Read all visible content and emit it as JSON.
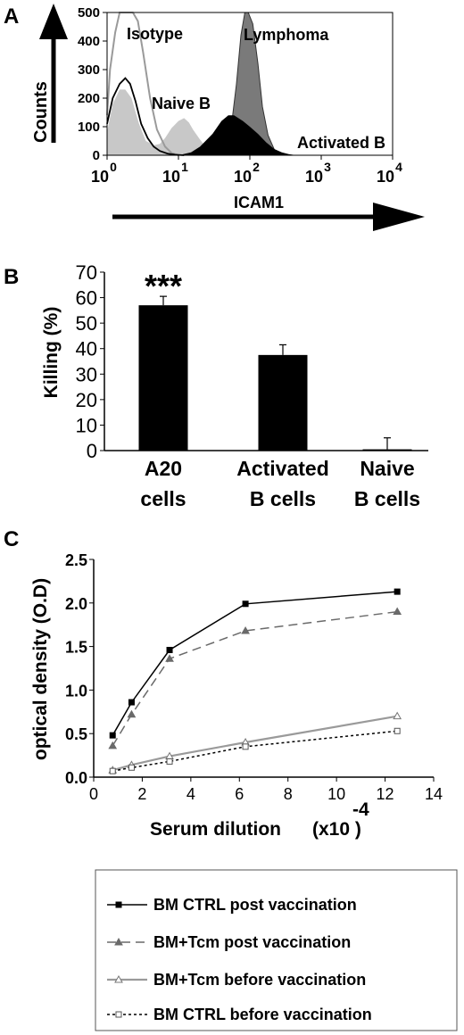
{
  "colors": {
    "isotope": "#9a9a9a",
    "naive_fill": "#c8c8c8",
    "lymphoma_fill": "#7a7a7a",
    "activated_fill": "#000000",
    "bar": "#000000",
    "series_gray": "#6a6a6a",
    "series_light": "#9a9a9a"
  },
  "panels": {
    "a": {
      "letter": "A"
    },
    "b": {
      "letter": "B"
    },
    "c": {
      "letter": "C"
    }
  },
  "chart_data": [
    {
      "type": "area",
      "panel": "A",
      "xlabel": "ICAM1",
      "ylabel": "Counts",
      "x_scale": "log",
      "xlim": [
        1,
        10000
      ],
      "ylim": [
        0,
        500
      ],
      "yticks": [
        "0",
        "100",
        "200",
        "300",
        "400",
        "500"
      ],
      "xticks": [
        {
          "base": "10",
          "exp": "0",
          "value": 1
        },
        {
          "base": "10",
          "exp": "1",
          "value": 10
        },
        {
          "base": "10",
          "exp": "2",
          "value": 100
        },
        {
          "base": "10",
          "exp": "3",
          "value": 1000
        },
        {
          "base": "10",
          "exp": "4",
          "value": 10000
        }
      ],
      "series": [
        {
          "name": "Isotype",
          "style": "gray-line",
          "x": [
            1,
            1.1,
            1.3,
            1.5,
            1.7,
            2,
            2.3,
            2.7,
            3.2,
            4,
            5,
            6.5,
            8,
            10
          ],
          "y": [
            140,
            300,
            430,
            500,
            500,
            500,
            500,
            470,
            360,
            200,
            90,
            30,
            8,
            0
          ]
        },
        {
          "name": "Naive B",
          "style": "light-fill",
          "x": [
            1,
            1.2,
            1.5,
            1.8,
            2.2,
            2.8,
            3.5,
            4.5,
            5.5,
            6.5,
            8,
            10,
            12,
            14,
            16,
            20,
            25,
            30,
            40
          ],
          "y": [
            80,
            180,
            230,
            230,
            200,
            110,
            50,
            35,
            40,
            60,
            95,
            120,
            130,
            115,
            90,
            55,
            25,
            10,
            0
          ]
        },
        {
          "name": "Activated B",
          "style": "black-fill",
          "x": [
            10,
            15,
            20,
            30,
            40,
            50,
            60,
            80,
            100,
            130,
            170,
            220,
            280,
            350,
            450
          ],
          "y": [
            0,
            10,
            30,
            75,
            120,
            140,
            140,
            120,
            100,
            75,
            45,
            22,
            10,
            4,
            0
          ]
        },
        {
          "name": "Lymphoma",
          "style": "dark-fill",
          "x": [
            30,
            45,
            55,
            65,
            75,
            85,
            95,
            110,
            130,
            150,
            180,
            220,
            260
          ],
          "y": [
            0,
            30,
            100,
            250,
            420,
            500,
            500,
            460,
            320,
            170,
            70,
            20,
            0
          ]
        },
        {
          "name": "",
          "style": "black-line",
          "x": [
            1,
            1.2,
            1.5,
            1.8,
            2.1,
            2.5,
            3,
            3.7,
            4.5,
            5.5,
            7,
            9,
            12
          ],
          "y": [
            110,
            200,
            250,
            270,
            250,
            190,
            110,
            60,
            30,
            15,
            6,
            2,
            0
          ]
        }
      ],
      "labels": [
        "Isotype",
        "Naive B",
        "Lymphoma",
        "Activated B"
      ]
    },
    {
      "type": "bar",
      "panel": "B",
      "ylabel": "Killing (%)",
      "ylim": [
        0,
        70
      ],
      "yticks": [
        "0",
        "10",
        "20",
        "30",
        "40",
        "50",
        "60",
        "70"
      ],
      "categories": [
        [
          "A20",
          "cells"
        ],
        [
          "Activated",
          "B cells"
        ],
        [
          "Naive",
          "B cells"
        ]
      ],
      "values": [
        57,
        37.5,
        0.5
      ],
      "errors": [
        3.5,
        4,
        4.5
      ],
      "annotation": "***"
    },
    {
      "type": "line",
      "panel": "C",
      "xlabel": "Serum dilution",
      "xlabel_unit": "(x10 )",
      "xlabel_exp": "-4",
      "ylabel": "optical density (O.D)",
      "xlim": [
        0,
        14
      ],
      "ylim": [
        0,
        2.5
      ],
      "xticks": [
        "0",
        "2",
        "4",
        "6",
        "8",
        "10",
        "12",
        "14"
      ],
      "yticks": [
        "0.0",
        "0.5",
        "1.0",
        "1.5",
        "2.0",
        "2.5"
      ],
      "grid": false,
      "legend_position": "bottom",
      "series": [
        {
          "name": "BM CTRL post vaccination",
          "style": "black-solid-square",
          "x": [
            0.78,
            1.56,
            3.125,
            6.25,
            12.5
          ],
          "y": [
            0.48,
            0.86,
            1.46,
            1.99,
            2.13
          ]
        },
        {
          "name": "BM+Tcm post vaccination",
          "style": "gray-dashed-triangle",
          "x": [
            0.78,
            1.56,
            3.125,
            6.25,
            12.5
          ],
          "y": [
            0.36,
            0.72,
            1.36,
            1.68,
            1.9
          ]
        },
        {
          "name": "BM+Tcm before vaccination",
          "style": "light-solid-open-triangle",
          "x": [
            0.78,
            1.56,
            3.125,
            6.25,
            12.5
          ],
          "y": [
            0.08,
            0.14,
            0.24,
            0.4,
            0.7
          ]
        },
        {
          "name": "BM CTRL before vaccination",
          "style": "black-dotted-open-square",
          "x": [
            0.78,
            1.56,
            3.125,
            6.25,
            12.5
          ],
          "y": [
            0.07,
            0.11,
            0.18,
            0.35,
            0.53
          ]
        }
      ]
    }
  ]
}
